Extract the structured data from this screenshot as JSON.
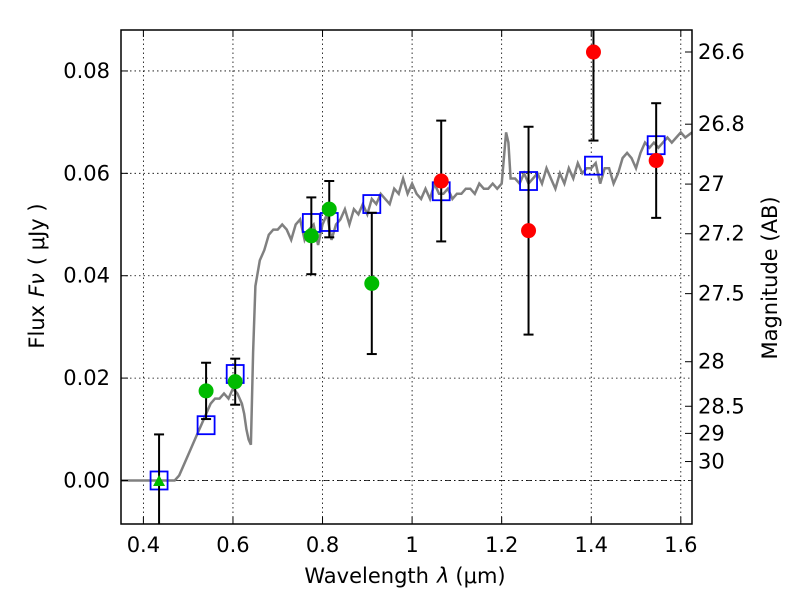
{
  "chart_data": {
    "type": "scatter",
    "title": "",
    "xlabel_main": "Wavelength",
    "xlabel_sym": "λ",
    "xlabel_unit": "(μm)",
    "ylabel_main": "Flux",
    "ylabel_sym": "Fν",
    "ylabel_unit": "( μJy )",
    "y2label": "Magnitude (AB)",
    "xlim": [
      0.35,
      1.625
    ],
    "ylim": [
      -0.0085,
      0.088
    ],
    "x_ticks": [
      0.4,
      0.6,
      0.8,
      1.0,
      1.2,
      1.4,
      1.6
    ],
    "x_tick_labels": [
      "0.4",
      "0.6",
      "0.8",
      "1",
      "1.2",
      "1.4",
      "1.6"
    ],
    "y_ticks": [
      0.0,
      0.02,
      0.04,
      0.06,
      0.08
    ],
    "y_tick_labels": [
      "0.00",
      "0.02",
      "0.04",
      "0.06",
      "0.08"
    ],
    "magnitude_ticks": [
      {
        "label": "26.6",
        "flux": 0.0837
      },
      {
        "label": "26.8",
        "flux": 0.0696
      },
      {
        "label": "27",
        "flux": 0.0579
      },
      {
        "label": "27.2",
        "flux": 0.0482
      },
      {
        "label": "27.5",
        "flux": 0.0365
      },
      {
        "label": "28",
        "flux": 0.0232
      },
      {
        "label": "28.5",
        "flux": 0.0145
      },
      {
        "label": "29",
        "flux": 0.0092
      },
      {
        "label": "30",
        "flux": 0.0037
      }
    ],
    "grid": true,
    "series": [
      {
        "name": "model_spectrum",
        "kind": "line",
        "color": "#808080",
        "x": [
          0.35,
          0.44,
          0.47,
          0.48,
          0.5,
          0.52,
          0.53,
          0.54,
          0.55,
          0.56,
          0.57,
          0.58,
          0.59,
          0.6,
          0.61,
          0.62,
          0.625,
          0.63,
          0.635,
          0.64,
          0.645,
          0.65,
          0.66,
          0.67,
          0.68,
          0.69,
          0.7,
          0.71,
          0.72,
          0.73,
          0.74,
          0.75,
          0.76,
          0.77,
          0.78,
          0.79,
          0.8,
          0.81,
          0.82,
          0.83,
          0.84,
          0.85,
          0.86,
          0.87,
          0.88,
          0.89,
          0.9,
          0.91,
          0.92,
          0.93,
          0.94,
          0.95,
          0.96,
          0.97,
          0.98,
          0.99,
          1.0,
          1.01,
          1.02,
          1.03,
          1.04,
          1.05,
          1.06,
          1.07,
          1.08,
          1.09,
          1.1,
          1.11,
          1.12,
          1.13,
          1.14,
          1.15,
          1.16,
          1.17,
          1.18,
          1.19,
          1.2,
          1.21,
          1.215,
          1.22,
          1.23,
          1.24,
          1.25,
          1.26,
          1.27,
          1.28,
          1.29,
          1.3,
          1.31,
          1.32,
          1.33,
          1.34,
          1.35,
          1.36,
          1.37,
          1.38,
          1.39,
          1.4,
          1.41,
          1.42,
          1.43,
          1.44,
          1.45,
          1.46,
          1.47,
          1.48,
          1.49,
          1.5,
          1.51,
          1.52,
          1.53,
          1.54,
          1.55,
          1.56,
          1.57,
          1.58,
          1.59,
          1.6,
          1.61,
          1.625
        ],
        "y": [
          0.0,
          0.0,
          0.0,
          0.001,
          0.005,
          0.009,
          0.011,
          0.013,
          0.015,
          0.016,
          0.016,
          0.017,
          0.016,
          0.018,
          0.017,
          0.015,
          0.013,
          0.01,
          0.008,
          0.007,
          0.025,
          0.038,
          0.043,
          0.045,
          0.048,
          0.049,
          0.049,
          0.05,
          0.049,
          0.047,
          0.05,
          0.051,
          0.047,
          0.049,
          0.05,
          0.046,
          0.05,
          0.052,
          0.047,
          0.05,
          0.051,
          0.053,
          0.05,
          0.053,
          0.052,
          0.054,
          0.052,
          0.055,
          0.054,
          0.056,
          0.055,
          0.054,
          0.057,
          0.056,
          0.059,
          0.056,
          0.058,
          0.056,
          0.055,
          0.057,
          0.055,
          0.058,
          0.056,
          0.056,
          0.057,
          0.055,
          0.056,
          0.056,
          0.057,
          0.057,
          0.056,
          0.058,
          0.057,
          0.057,
          0.058,
          0.057,
          0.058,
          0.068,
          0.066,
          0.059,
          0.059,
          0.058,
          0.06,
          0.058,
          0.059,
          0.06,
          0.058,
          0.061,
          0.059,
          0.057,
          0.06,
          0.058,
          0.061,
          0.059,
          0.062,
          0.06,
          0.061,
          0.061,
          0.062,
          0.058,
          0.061,
          0.061,
          0.058,
          0.06,
          0.063,
          0.064,
          0.063,
          0.061,
          0.064,
          0.066,
          0.065,
          0.066,
          0.065,
          0.066,
          0.067,
          0.066,
          0.067,
          0.068,
          0.067,
          0.068
        ]
      },
      {
        "name": "model_bandpass_flux",
        "kind": "open-square",
        "color": "#0000ff",
        "x": [
          0.435,
          0.54,
          0.605,
          0.775,
          0.815,
          0.91,
          1.065,
          1.26,
          1.405,
          1.545
        ],
        "y": [
          0.0,
          0.0108,
          0.0208,
          0.0503,
          0.0505,
          0.054,
          0.0565,
          0.0585,
          0.0615,
          0.0655
        ]
      },
      {
        "name": "green_detections",
        "kind": "circle-errorbar",
        "color": "#00bb00",
        "x": [
          0.54,
          0.605,
          0.775,
          0.815,
          0.91
        ],
        "y": [
          0.0175,
          0.0193,
          0.0478,
          0.053,
          0.0385
        ],
        "yerr": [
          0.0055,
          0.0045,
          0.0075,
          0.0055,
          0.0138
        ]
      },
      {
        "name": "green_upper_limit",
        "kind": "triangle-errorbar",
        "color": "#00bb00",
        "x": [
          0.435
        ],
        "y": [
          -0.0003
        ],
        "yerr": [
          0.0093
        ]
      },
      {
        "name": "red_detections",
        "kind": "circle-errorbar",
        "color": "#ff0000",
        "x": [
          1.065,
          1.26,
          1.405,
          1.545
        ],
        "y": [
          0.0585,
          0.0488,
          0.0837,
          0.0625
        ],
        "yerr": [
          0.0118,
          0.0203,
          0.0173,
          0.0112
        ]
      }
    ]
  }
}
